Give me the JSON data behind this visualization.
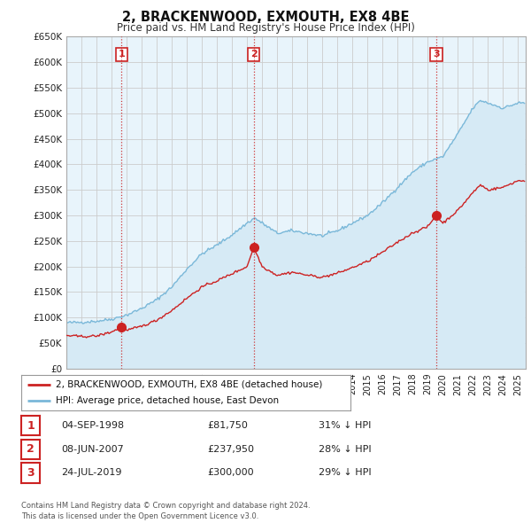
{
  "title": "2, BRACKENWOOD, EXMOUTH, EX8 4BE",
  "subtitle": "Price paid vs. HM Land Registry's House Price Index (HPI)",
  "ylabel_ticks": [
    "£0",
    "£50K",
    "£100K",
    "£150K",
    "£200K",
    "£250K",
    "£300K",
    "£350K",
    "£400K",
    "£450K",
    "£500K",
    "£550K",
    "£600K",
    "£650K"
  ],
  "ytick_vals": [
    0,
    50000,
    100000,
    150000,
    200000,
    250000,
    300000,
    350000,
    400000,
    450000,
    500000,
    550000,
    600000,
    650000
  ],
  "xlim_start": 1995.0,
  "xlim_end": 2025.5,
  "ylim_bottom": 0,
  "ylim_top": 650000,
  "hpi_color": "#7ab8d9",
  "hpi_fill_color": "#d6eaf5",
  "price_color": "#cc2222",
  "sale_marker_color": "#cc2222",
  "vline_color": "#cc2222",
  "grid_color": "#cccccc",
  "chart_bg": "#e8f4fb",
  "background_color": "#ffffff",
  "sales": [
    {
      "date_x": 1998.67,
      "price": 81750,
      "label": "1"
    },
    {
      "date_x": 2007.44,
      "price": 237950,
      "label": "2"
    },
    {
      "date_x": 2019.56,
      "price": 300000,
      "label": "3"
    }
  ],
  "legend_line1": "2, BRACKENWOOD, EXMOUTH, EX8 4BE (detached house)",
  "legend_line2": "HPI: Average price, detached house, East Devon",
  "table_rows": [
    [
      "1",
      "04-SEP-1998",
      "£81,750",
      "31% ↓ HPI"
    ],
    [
      "2",
      "08-JUN-2007",
      "£237,950",
      "28% ↓ HPI"
    ],
    [
      "3",
      "24-JUL-2019",
      "£300,000",
      "29% ↓ HPI"
    ]
  ],
  "footnote": "Contains HM Land Registry data © Crown copyright and database right 2024.\nThis data is licensed under the Open Government Licence v3.0."
}
